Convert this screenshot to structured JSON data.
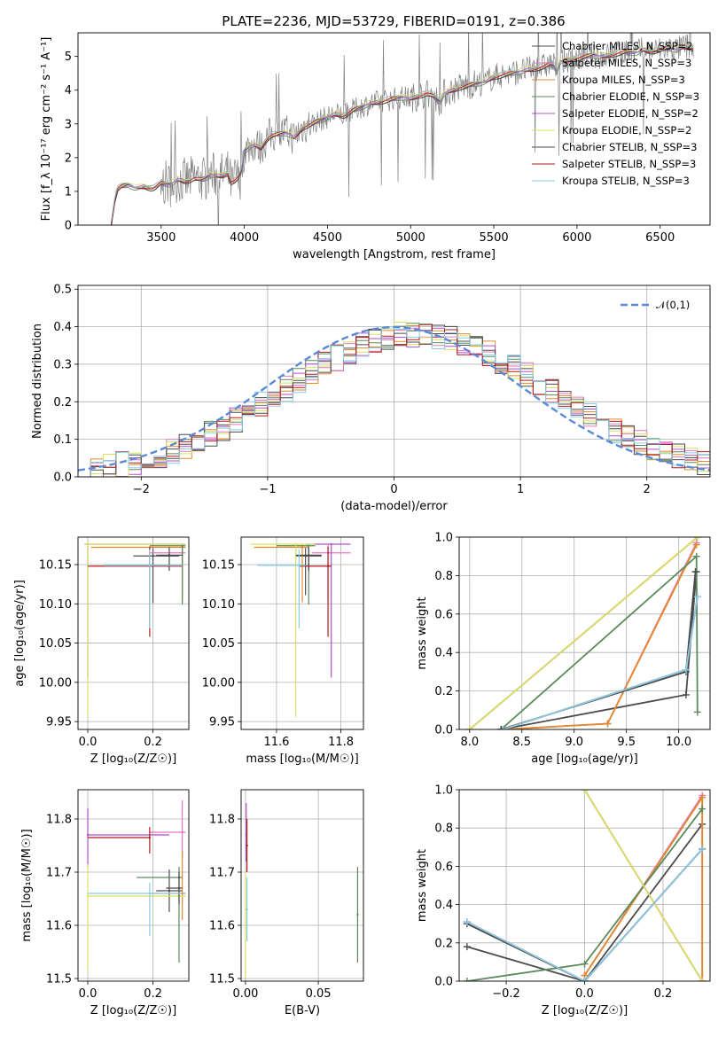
{
  "colors": {
    "Chabrier MILES": "#4c4c4c",
    "Salpeter MILES": "#e377c2",
    "Kroupa MILES": "#e08a2a",
    "Chabrier ELODIE": "#5a8a5a",
    "Salpeter ELODIE": "#b24fc9",
    "Kroupa ELODIE": "#d8e060",
    "Chabrier STELIB": "#4a4a4a",
    "Salpeter STELIB": "#b21a1a",
    "Kroupa STELIB": "#87cde8",
    "gaussian": "#5b8ad8",
    "obs": "#808080"
  },
  "chart_data": [
    {
      "id": "spectrum",
      "type": "line",
      "title": "PLATE=2236, MJD=53729, FIBERID=0191, z=0.386",
      "xlabel": "wavelength [Angstrom, rest frame]",
      "ylabel": "Flux [f_λ 10⁻¹⁷ erg cm⁻² s⁻¹ A⁻¹]",
      "xlim": [
        3000,
        6800
      ],
      "ylim": [
        0,
        5.7
      ],
      "xticks": [
        3500,
        4000,
        4500,
        5000,
        5500,
        6000,
        6500
      ],
      "yticks": [
        0,
        1,
        2,
        3,
        4,
        5
      ],
      "legend_position": "top-right",
      "legend": [
        "Chabrier MILES, N_SSP=2",
        "Salpeter MILES, N_SSP=3",
        "Kroupa MILES, N_SSP=3",
        "Chabrier ELODIE, N_SSP=3",
        "Salpeter ELODIE, N_SSP=2",
        "Kroupa ELODIE, N_SSP=2",
        "Chabrier STELIB, N_SSP=3",
        "Salpeter STELIB, N_SSP=3",
        "Kroupa STELIB, N_SSP=3"
      ],
      "model_continuum": {
        "x": [
          3200,
          3230,
          3260,
          3300,
          3350,
          3400,
          3450,
          3500,
          3550,
          3600,
          3650,
          3700,
          3750,
          3800,
          3850,
          3880,
          3900,
          3933,
          3950,
          3968,
          4000,
          4050,
          4100,
          4150,
          4200,
          4250,
          4300,
          4350,
          4400,
          4450,
          4500,
          4550,
          4600,
          4650,
          4700,
          4750,
          4800,
          4850,
          4900,
          4950,
          5000,
          5050,
          5100,
          5150,
          5175,
          5200,
          5250,
          5300,
          5350,
          5400,
          5450,
          5500,
          5550,
          5600,
          5650,
          5700,
          5750,
          5800,
          5850,
          5890,
          5900,
          5950,
          6000,
          6050,
          6100,
          6150,
          6200,
          6250,
          6300,
          6350,
          6400,
          6450,
          6500,
          6550,
          6600,
          6650,
          6700
        ],
        "y": [
          0.05,
          1.05,
          1.15,
          1.2,
          1.1,
          1.15,
          1.08,
          1.25,
          1.2,
          1.35,
          1.3,
          1.4,
          1.35,
          1.5,
          1.45,
          1.5,
          1.55,
          1.1,
          1.6,
          1.2,
          2.2,
          2.4,
          2.3,
          2.65,
          2.7,
          2.75,
          2.6,
          2.9,
          3.0,
          3.1,
          3.2,
          3.3,
          3.25,
          3.4,
          3.5,
          3.6,
          3.65,
          3.7,
          3.75,
          3.8,
          3.75,
          3.85,
          3.9,
          3.8,
          3.6,
          3.9,
          4.0,
          4.1,
          4.15,
          4.2,
          4.25,
          4.4,
          4.45,
          4.5,
          4.55,
          4.6,
          4.65,
          4.7,
          4.8,
          4.5,
          4.85,
          4.9,
          4.95,
          5.0,
          5.05,
          5.0,
          5.05,
          5.1,
          5.15,
          5.1,
          5.2,
          5.15,
          5.2,
          5.25,
          5.2,
          5.3,
          5.25
        ]
      }
    },
    {
      "id": "residuals",
      "type": "line",
      "title": "",
      "xlabel": "(data-model)/error",
      "ylabel": "Normed distribution",
      "xlim": [
        -2.5,
        2.5
      ],
      "ylim": [
        0,
        0.51
      ],
      "xticks": [
        -2,
        -1,
        0,
        1,
        2
      ],
      "yticks": [
        0.0,
        0.1,
        0.2,
        0.3,
        0.4,
        0.5
      ],
      "grid": true,
      "legend_position": "top-right",
      "legend": [
        "𝒩(0,1)"
      ],
      "histogram_bin_width": 0.1,
      "histogram_range": [
        -2.5,
        2.5
      ]
    },
    {
      "id": "age-vs-z",
      "type": "scatter",
      "xlabel": "Z [log₁₀(Z/Z☉)]",
      "ylabel": "age  [log₁₀(age/yr)]",
      "xlim": [
        -0.03,
        0.31
      ],
      "ylim": [
        9.94,
        10.185
      ],
      "xticks": [
        0.0,
        0.2
      ],
      "yticks": [
        9.95,
        10.0,
        10.05,
        10.1,
        10.15
      ],
      "grid": true,
      "series": [
        {
          "name": "Chabrier MILES",
          "x": 0.2,
          "y": 10.161,
          "xerr": [
            0.06,
            0.08
          ],
          "yerr": [
            0.06,
            0.01
          ]
        },
        {
          "name": "Salpeter MILES",
          "x": 0.29,
          "y": 10.165,
          "xerr": [
            0.1,
            0.01
          ],
          "yerr": [
            0.06,
            0.01
          ]
        },
        {
          "name": "Kroupa MILES",
          "x": 0.29,
          "y": 10.172,
          "xerr": [
            0.28,
            0.01
          ],
          "yerr": [
            0.07,
            0.004
          ]
        },
        {
          "name": "Chabrier ELODIE",
          "x": 0.29,
          "y": 10.174,
          "xerr": [
            0.1,
            0.01
          ],
          "yerr": [
            0.075,
            0.002
          ]
        },
        {
          "name": "Salpeter ELODIE",
          "x": 0.0,
          "y": 10.176,
          "xerr": [
            0.01,
            0.3
          ],
          "yerr": [
            0.17,
            0.001
          ]
        },
        {
          "name": "Kroupa ELODIE",
          "x": 0.0,
          "y": 10.176,
          "xerr": [
            0.01,
            0.3
          ],
          "yerr": [
            0.22,
            0.001
          ]
        },
        {
          "name": "Chabrier STELIB",
          "x": 0.25,
          "y": 10.162,
          "xerr": [
            0.04,
            0.04
          ],
          "yerr": [
            0.02,
            0.01
          ]
        },
        {
          "name": "Salpeter STELIB",
          "x": 0.19,
          "y": 10.148,
          "xerr": [
            0.19,
            0.1
          ],
          "yerr": [
            0.09,
            0.025
          ]
        },
        {
          "name": "Kroupa STELIB",
          "x": 0.19,
          "y": 10.149,
          "xerr": [
            0.14,
            0.1
          ],
          "yerr": [
            0.08,
            0.02
          ]
        }
      ]
    },
    {
      "id": "age-vs-mass",
      "type": "scatter",
      "xlabel": "mass [log₁₀(M/M☉)]",
      "ylabel": "",
      "xlim": [
        11.49,
        11.87
      ],
      "ylim": [
        9.94,
        10.185
      ],
      "xticks": [
        11.6,
        11.8
      ],
      "yticks": [
        9.95,
        10.0,
        10.05,
        10.1,
        10.15
      ],
      "grid": true,
      "series": [
        {
          "name": "Chabrier MILES",
          "x": 11.69,
          "y": 10.161,
          "xerr": [
            0.03,
            0.05
          ],
          "yerr": [
            0.05,
            0.01
          ]
        },
        {
          "name": "Salpeter MILES",
          "x": 11.76,
          "y": 10.165,
          "xerr": [
            0.05,
            0.07
          ],
          "yerr": [
            0.06,
            0.01
          ]
        },
        {
          "name": "Kroupa MILES",
          "x": 11.68,
          "y": 10.172,
          "xerr": [
            0.15,
            0.02
          ],
          "yerr": [
            0.07,
            0.004
          ]
        },
        {
          "name": "Chabrier ELODIE",
          "x": 11.7,
          "y": 10.174,
          "xerr": [
            0.1,
            0.02
          ],
          "yerr": [
            0.075,
            0.002
          ]
        },
        {
          "name": "Salpeter ELODIE",
          "x": 11.77,
          "y": 10.176,
          "xerr": [
            0.08,
            0.06
          ],
          "yerr": [
            0.17,
            0.001
          ]
        },
        {
          "name": "Kroupa ELODIE",
          "x": 11.66,
          "y": 10.176,
          "xerr": [
            0.14,
            0.06
          ],
          "yerr": [
            0.22,
            0.001
          ]
        },
        {
          "name": "Chabrier STELIB",
          "x": 11.7,
          "y": 10.162,
          "xerr": [
            0.04,
            0.04
          ],
          "yerr": [
            0.02,
            0.01
          ]
        },
        {
          "name": "Salpeter STELIB",
          "x": 11.76,
          "y": 10.148,
          "xerr": [
            0.09,
            0.01
          ],
          "yerr": [
            0.09,
            0.025
          ]
        },
        {
          "name": "Kroupa STELIB",
          "x": 11.67,
          "y": 10.149,
          "xerr": [
            0.13,
            0.02
          ],
          "yerr": [
            0.08,
            0.02
          ]
        }
      ]
    },
    {
      "id": "weight-vs-age",
      "type": "line",
      "xlabel": "age  [log₁₀(age/yr)]",
      "ylabel": "mass weight",
      "xlim": [
        7.9,
        10.3
      ],
      "ylim": [
        0,
        1.0
      ],
      "xticks": [
        8.0,
        8.5,
        9.0,
        9.5,
        10.0
      ],
      "yticks": [
        0.0,
        0.2,
        0.4,
        0.6,
        0.8,
        1.0
      ],
      "grid": true,
      "series": [
        {
          "name": "Chabrier MILES",
          "x": [
            8.3,
            10.07,
            10.17
          ],
          "y": [
            0.0,
            0.18,
            0.82
          ]
        },
        {
          "name": "Salpeter MILES",
          "x": [
            8.32,
            9.32,
            10.17
          ],
          "y": [
            0.0,
            0.03,
            0.97
          ]
        },
        {
          "name": "Kroupa MILES",
          "x": [
            8.32,
            9.32,
            10.17
          ],
          "y": [
            0.0,
            0.03,
            0.96
          ]
        },
        {
          "name": "Chabrier ELODIE",
          "x": [
            8.3,
            10.17,
            10.18
          ],
          "y": [
            0.0,
            0.9,
            0.09
          ]
        },
        {
          "name": "Salpeter ELODIE",
          "x": [
            8.0,
            10.18
          ],
          "y": [
            0.0,
            1.0
          ]
        },
        {
          "name": "Kroupa ELODIE",
          "x": [
            8.0,
            10.18
          ],
          "y": [
            0.0,
            1.0
          ]
        },
        {
          "name": "Chabrier STELIB",
          "x": [
            8.3,
            10.07,
            10.16
          ],
          "y": [
            0.0,
            0.3,
            0.82
          ]
        },
        {
          "name": "Salpeter STELIB",
          "x": [
            8.32,
            10.07,
            10.18
          ],
          "y": [
            0.0,
            0.31,
            0.69
          ]
        },
        {
          "name": "Kroupa STELIB",
          "x": [
            8.32,
            10.07,
            10.18
          ],
          "y": [
            0.0,
            0.31,
            0.69
          ]
        }
      ]
    },
    {
      "id": "mass-vs-z",
      "type": "scatter",
      "xlabel": "Z [log₁₀(Z/Z☉)]",
      "ylabel": "mass [log₁₀(M/M☉)]",
      "xlim": [
        -0.03,
        0.31
      ],
      "ylim": [
        11.495,
        11.855
      ],
      "xticks": [
        0.0,
        0.2
      ],
      "yticks": [
        11.5,
        11.6,
        11.7,
        11.8
      ],
      "grid": true,
      "series": [
        {
          "name": "Chabrier MILES",
          "x": 0.25,
          "y": 11.665,
          "xerr": [
            0.04,
            0.04
          ],
          "yerr": [
            0.04,
            0.04
          ]
        },
        {
          "name": "Salpeter MILES",
          "x": 0.29,
          "y": 11.775,
          "xerr": [
            0.1,
            0.01
          ],
          "yerr": [
            0.05,
            0.06
          ]
        },
        {
          "name": "Kroupa MILES",
          "x": 0.29,
          "y": 11.66,
          "xerr": [
            0.1,
            0.01
          ],
          "yerr": [
            0.05,
            0.08
          ]
        },
        {
          "name": "Chabrier ELODIE",
          "x": 0.28,
          "y": 11.69,
          "xerr": [
            0.13,
            0.01
          ],
          "yerr": [
            0.16,
            0.02
          ]
        },
        {
          "name": "Salpeter ELODIE",
          "x": 0.0,
          "y": 11.77,
          "xerr": [
            0.0,
            0.25
          ],
          "yerr": [
            0.06,
            0.05
          ]
        },
        {
          "name": "Kroupa ELODIE",
          "x": 0.0,
          "y": 11.655,
          "xerr": [
            0.0,
            0.3
          ],
          "yerr": [
            0.14,
            0.06
          ]
        },
        {
          "name": "Chabrier STELIB",
          "x": 0.28,
          "y": 11.67,
          "xerr": [
            0.04,
            0.01
          ],
          "yerr": [
            0.03,
            0.03
          ]
        },
        {
          "name": "Salpeter STELIB",
          "x": 0.19,
          "y": 11.765,
          "xerr": [
            0.19,
            0.0
          ],
          "yerr": [
            0.03,
            0.02
          ]
        },
        {
          "name": "Kroupa STELIB",
          "x": 0.19,
          "y": 11.66,
          "xerr": [
            0.19,
            0.1
          ],
          "yerr": [
            0.08,
            0.02
          ]
        }
      ]
    },
    {
      "id": "mass-vs-ebv",
      "type": "scatter",
      "xlabel": "E(B-V)",
      "ylabel": "",
      "xlim": [
        -0.003,
        0.081
      ],
      "ylim": [
        11.495,
        11.855
      ],
      "xticks": [
        0.0,
        0.05
      ],
      "yticks": [
        11.5,
        11.6,
        11.7,
        11.8
      ],
      "grid": true,
      "series": [
        {
          "name": "Chabrier ELODIE",
          "x": 0.077,
          "y": 11.62,
          "yerr": [
            0.09,
            0.09
          ]
        },
        {
          "name": "Salpeter ELODIE",
          "x": 0.0005,
          "y": 11.77,
          "yerr": [
            0.05,
            0.06
          ]
        },
        {
          "name": "Kroupa ELODIE",
          "x": 0.0,
          "y": 11.6,
          "yerr": [
            0.1,
            0.1
          ]
        },
        {
          "name": "Salpeter STELIB",
          "x": 0.001,
          "y": 11.75,
          "yerr": [
            0.05,
            0.05
          ]
        },
        {
          "name": "Kroupa STELIB",
          "x": 0.001,
          "y": 11.63,
          "yerr": [
            0.06,
            0.06
          ]
        }
      ]
    },
    {
      "id": "weight-vs-z",
      "type": "line",
      "xlabel": "Z [log₁₀(Z/Z☉)]",
      "ylabel": "mass weight",
      "xlim": [
        -0.32,
        0.32
      ],
      "ylim": [
        0,
        1.0
      ],
      "xticks": [
        -0.2,
        0.0,
        0.2
      ],
      "yticks": [
        0.0,
        0.2,
        0.4,
        0.6,
        0.8,
        1.0
      ],
      "grid": true,
      "series": [
        {
          "name": "Chabrier MILES",
          "x": [
            -0.3,
            0.0,
            0.3
          ],
          "y": [
            0.18,
            0.0,
            0.82
          ]
        },
        {
          "name": "Salpeter MILES",
          "x": [
            0.0,
            0.3,
            0.3
          ],
          "y": [
            0.03,
            0.97,
            0.0
          ]
        },
        {
          "name": "Kroupa MILES",
          "x": [
            0.0,
            0.3,
            0.3
          ],
          "y": [
            0.03,
            0.96,
            0.0
          ]
        },
        {
          "name": "Chabrier ELODIE",
          "x": [
            -0.3,
            0.0,
            0.3
          ],
          "y": [
            0.0,
            0.09,
            0.9
          ]
        },
        {
          "name": "Salpeter ELODIE",
          "x": [
            0.0,
            0.3
          ],
          "y": [
            1.0,
            0.0
          ]
        },
        {
          "name": "Kroupa ELODIE",
          "x": [
            0.0,
            0.3
          ],
          "y": [
            1.0,
            0.0
          ]
        },
        {
          "name": "Chabrier STELIB",
          "x": [
            -0.3,
            0.0,
            0.3
          ],
          "y": [
            0.3,
            0.0,
            0.69
          ]
        },
        {
          "name": "Salpeter STELIB",
          "x": [
            -0.3,
            0.0,
            0.3
          ],
          "y": [
            0.31,
            0.0,
            0.69
          ]
        },
        {
          "name": "Kroupa STELIB",
          "x": [
            -0.3,
            0.0,
            0.3
          ],
          "y": [
            0.31,
            0.0,
            0.69
          ]
        }
      ]
    }
  ]
}
